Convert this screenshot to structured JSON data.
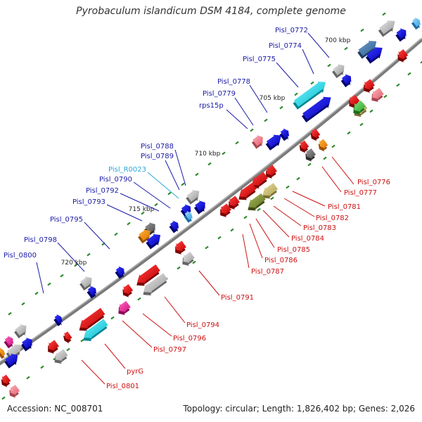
{
  "title": "Pyrobaculum islandicum DSM 4184, complete genome",
  "footer": {
    "accession": "Accession: NC_008701",
    "topology": "Topology: circular; Length: 1,826,402 bp; Genes: 2,026"
  },
  "ticks": [
    "700 kbp",
    "705 kbp",
    "710 kbp",
    "715 kbp",
    "720 kbp"
  ],
  "colors": {
    "backbone": "#7a7a7a",
    "forward_label": "#1a1aa8",
    "reverse_label": "#cc1111",
    "rna_label": "#2aa8d8",
    "tick_mark": "#2e8b2e"
  },
  "labels": [
    {
      "text": "Pisl_0772",
      "strand": "forward"
    },
    {
      "text": "Pisl_0774",
      "strand": "forward"
    },
    {
      "text": "Pisl_0775",
      "strand": "forward"
    },
    {
      "text": "Pisl_0778",
      "strand": "forward"
    },
    {
      "text": "Pisl_0779",
      "strand": "forward"
    },
    {
      "text": "rps15p",
      "strand": "forward"
    },
    {
      "text": "Pisl_0788",
      "strand": "forward"
    },
    {
      "text": "Pisl_0789",
      "strand": "forward"
    },
    {
      "text": "Pisl_R0023",
      "strand": "rna"
    },
    {
      "text": "Pisl_0790",
      "strand": "forward"
    },
    {
      "text": "Pisl_0792",
      "strand": "forward"
    },
    {
      "text": "Pisl_0793",
      "strand": "forward"
    },
    {
      "text": "Pisl_0795",
      "strand": "forward"
    },
    {
      "text": "Pisl_0798",
      "strand": "forward"
    },
    {
      "text": "Pisl_0800",
      "strand": "forward"
    },
    {
      "text": "Pisl_0776",
      "strand": "reverse"
    },
    {
      "text": "Pisl_0777",
      "strand": "reverse"
    },
    {
      "text": "Pisl_0781",
      "strand": "reverse"
    },
    {
      "text": "Pisl_0782",
      "strand": "reverse"
    },
    {
      "text": "Pisl_0783",
      "strand": "reverse"
    },
    {
      "text": "Pisl_0784",
      "strand": "reverse"
    },
    {
      "text": "Pisl_0785",
      "strand": "reverse"
    },
    {
      "text": "Pisl_0786",
      "strand": "reverse"
    },
    {
      "text": "Pisl_0787",
      "strand": "reverse"
    },
    {
      "text": "Pisl_0791",
      "strand": "reverse"
    },
    {
      "text": "Pisl_0794",
      "strand": "reverse"
    },
    {
      "text": "Pisl_0796",
      "strand": "reverse"
    },
    {
      "text": "Pisl_0797",
      "strand": "reverse"
    },
    {
      "text": "pyrG",
      "strand": "reverse"
    },
    {
      "text": "Pisl_0801",
      "strand": "reverse"
    }
  ]
}
